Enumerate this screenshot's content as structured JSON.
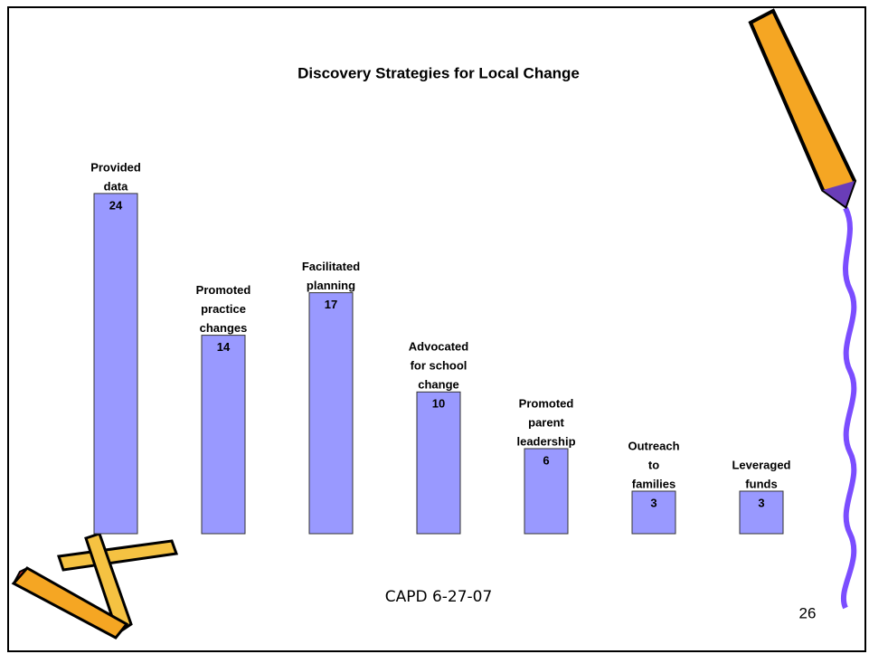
{
  "chart_data": {
    "type": "bar",
    "title": "Discovery Strategies for Local Change",
    "categories": [
      [
        "Provided",
        "data"
      ],
      [
        "Promoted",
        "practice",
        "changes"
      ],
      [
        "Facilitated",
        "planning"
      ],
      [
        "Advocated",
        "for school",
        "change"
      ],
      [
        "Promoted",
        "parent",
        "leadership"
      ],
      [
        "Outreach",
        "to",
        "families"
      ],
      [
        "Leveraged",
        "funds"
      ]
    ],
    "values": [
      24,
      14,
      17,
      10,
      6,
      3,
      3
    ],
    "color": "#9999ff"
  },
  "footer": "CAPD 6-27-07",
  "page_number": "26"
}
